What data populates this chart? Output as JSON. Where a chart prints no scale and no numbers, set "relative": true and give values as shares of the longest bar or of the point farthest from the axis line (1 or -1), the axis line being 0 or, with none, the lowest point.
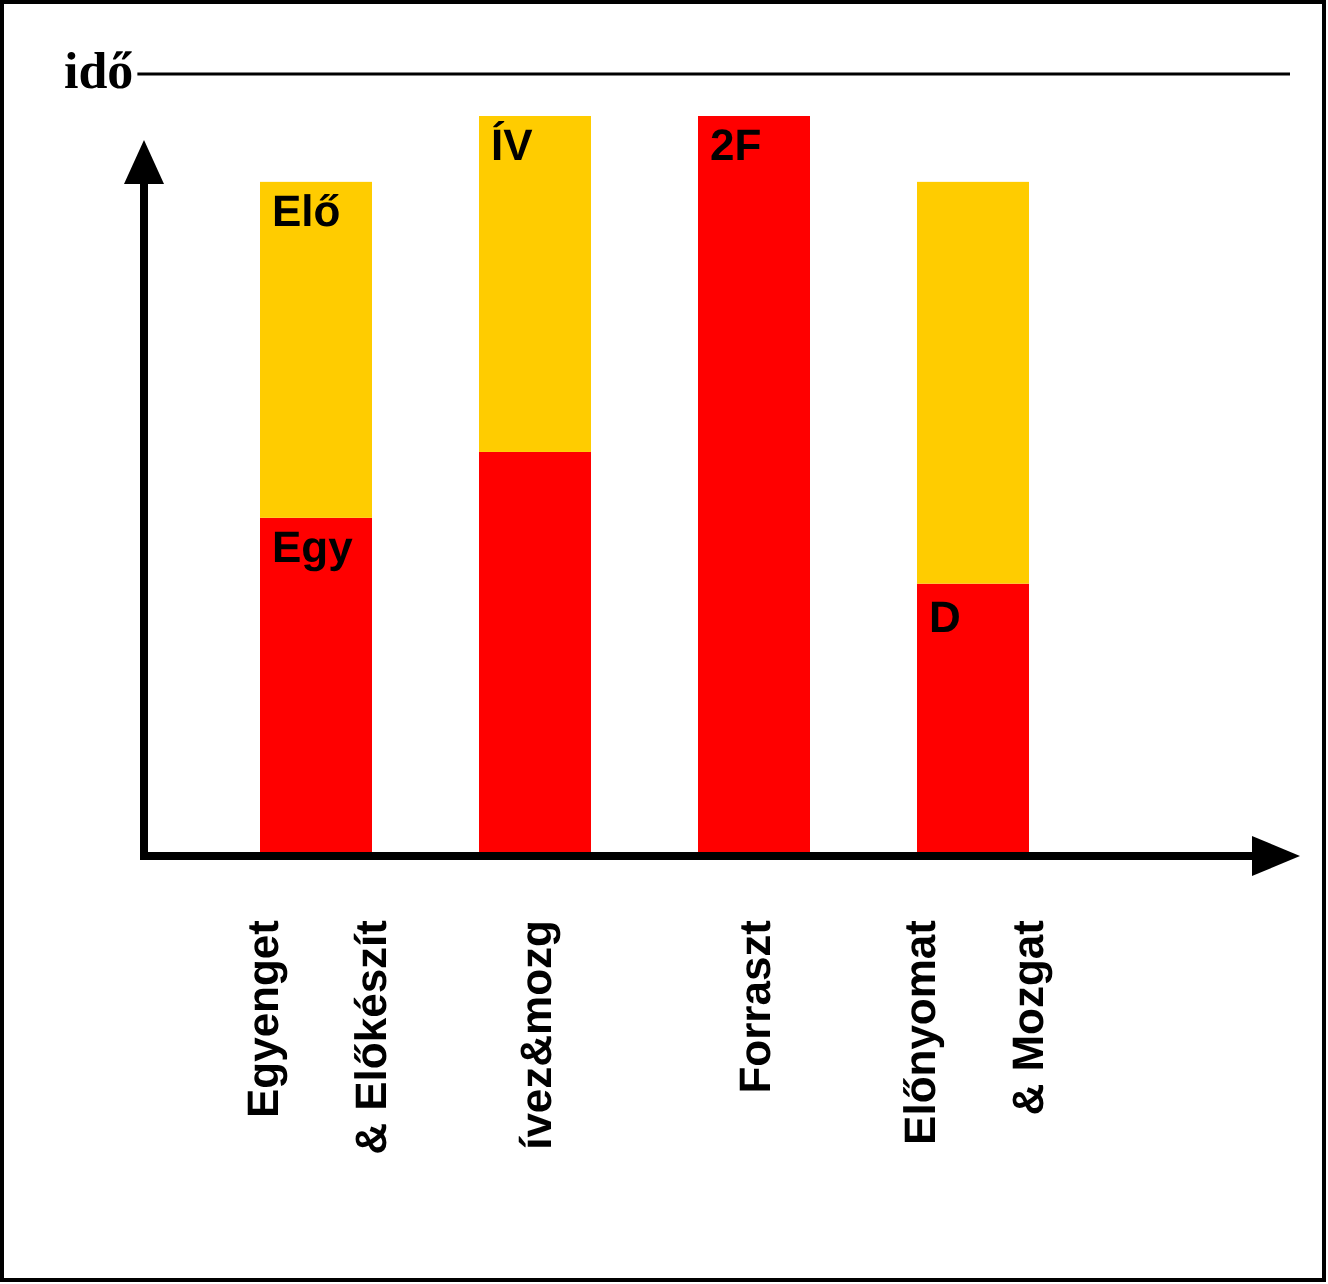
{
  "chart_data": {
    "type": "bar",
    "title": "idő",
    "stacked": true,
    "relative": true,
    "categories": [
      "Egyenget\n& Előkészít",
      "ívez&mozg",
      "Forraszt",
      "Előnyomat\n& Mozgat"
    ],
    "series": [
      {
        "color": "#ff0000",
        "values": [
          0.457,
          0.546,
          1,
          0.368
        ]
      },
      {
        "color": "#ffcc00",
        "values": [
          0.454,
          0.454,
          0,
          0.543
        ]
      }
    ],
    "annotations": [
      "Elő",
      "Egy",
      "ÍV",
      "2F",
      "D"
    ]
  }
}
